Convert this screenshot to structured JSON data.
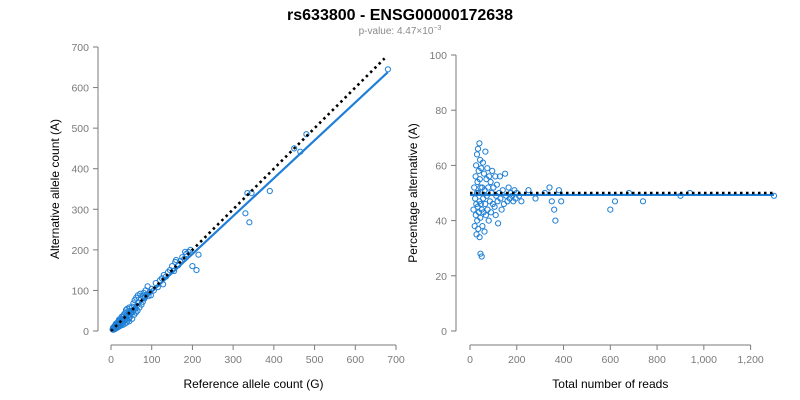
{
  "figure": {
    "title": "rs633800 - ENSG00000172638",
    "subtitle_prefix": "p-value: 4.47×10",
    "subtitle_exponent": "−3"
  },
  "colors": {
    "points": "#1f7fd6",
    "fit": "#1f7fd6",
    "reference": "#000000",
    "axis": "#7a7a7a"
  },
  "chart_data": [
    {
      "type": "scatter",
      "title": "",
      "xlabel": "Reference allele count (G)",
      "ylabel": "Alternative allele count (A)",
      "xlim": [
        0,
        700
      ],
      "ylim": [
        0,
        700
      ],
      "xticks": [
        0,
        100,
        200,
        300,
        400,
        500,
        600,
        700
      ],
      "xtick_labels": [
        "0",
        "100",
        "200",
        "300",
        "400",
        "500",
        "600",
        "700"
      ],
      "yticks": [
        0,
        100,
        200,
        300,
        400,
        500,
        600,
        700
      ],
      "ytick_labels": [
        "0",
        "100",
        "200",
        "300",
        "400",
        "500",
        "600",
        "700"
      ],
      "grid": false,
      "reference_line": {
        "style": "dotted",
        "points": [
          [
            0,
            0
          ],
          [
            672,
            672
          ]
        ]
      },
      "fit_line": {
        "style": "solid",
        "points": [
          [
            0,
            3
          ],
          [
            680,
            638
          ]
        ]
      },
      "points": [
        [
          4,
          4
        ],
        [
          5,
          8
        ],
        [
          6,
          3
        ],
        [
          7,
          10
        ],
        [
          8,
          6
        ],
        [
          9,
          12
        ],
        [
          10,
          5
        ],
        [
          10,
          14
        ],
        [
          11,
          9
        ],
        [
          12,
          18
        ],
        [
          12,
          7
        ],
        [
          13,
          15
        ],
        [
          14,
          11
        ],
        [
          15,
          20
        ],
        [
          15,
          8
        ],
        [
          16,
          13
        ],
        [
          17,
          22
        ],
        [
          18,
          10
        ],
        [
          18,
          16
        ],
        [
          19,
          25
        ],
        [
          20,
          14
        ],
        [
          20,
          28
        ],
        [
          21,
          18
        ],
        [
          22,
          12
        ],
        [
          23,
          21
        ],
        [
          24,
          30
        ],
        [
          25,
          16
        ],
        [
          25,
          24
        ],
        [
          26,
          35
        ],
        [
          27,
          19
        ],
        [
          28,
          27
        ],
        [
          29,
          15
        ],
        [
          30,
          38
        ],
        [
          30,
          22
        ],
        [
          31,
          30
        ],
        [
          32,
          41
        ],
        [
          33,
          25
        ],
        [
          34,
          18
        ],
        [
          35,
          33
        ],
        [
          35,
          45
        ],
        [
          36,
          28
        ],
        [
          37,
          52
        ],
        [
          38,
          21
        ],
        [
          38,
          36
        ],
        [
          39,
          30
        ],
        [
          40,
          55
        ],
        [
          40,
          42
        ],
        [
          41,
          26
        ],
        [
          42,
          38
        ],
        [
          43,
          48
        ],
        [
          44,
          32
        ],
        [
          45,
          58
        ],
        [
          45,
          24
        ],
        [
          46,
          40
        ],
        [
          47,
          35
        ],
        [
          48,
          50
        ],
        [
          50,
          44
        ],
        [
          52,
          60
        ],
        [
          52,
          30
        ],
        [
          54,
          47
        ],
        [
          55,
          68
        ],
        [
          56,
          52
        ],
        [
          57,
          40
        ],
        [
          58,
          76
        ],
        [
          60,
          55
        ],
        [
          61,
          45
        ],
        [
          62,
          82
        ],
        [
          63,
          62
        ],
        [
          65,
          50
        ],
        [
          66,
          88
        ],
        [
          68,
          70
        ],
        [
          70,
          58
        ],
        [
          72,
          92
        ],
        [
          74,
          78
        ],
        [
          75,
          65
        ],
        [
          77,
          86
        ],
        [
          78,
          72
        ],
        [
          80,
          94
        ],
        [
          82,
          80
        ],
        [
          84,
          84
        ],
        [
          85,
          100
        ],
        [
          88,
          90
        ],
        [
          90,
          110
        ],
        [
          92,
          86
        ],
        [
          95,
          96
        ],
        [
          98,
          88
        ],
        [
          100,
          104
        ],
        [
          105,
          100
        ],
        [
          110,
          118
        ],
        [
          115,
          108
        ],
        [
          120,
          125
        ],
        [
          125,
          130
        ],
        [
          128,
          115
        ],
        [
          130,
          138
        ],
        [
          135,
          134
        ],
        [
          140,
          145
        ],
        [
          145,
          150
        ],
        [
          150,
          160
        ],
        [
          155,
          148
        ],
        [
          158,
          170
        ],
        [
          160,
          175
        ],
        [
          165,
          162
        ],
        [
          170,
          172
        ],
        [
          175,
          182
        ],
        [
          180,
          178
        ],
        [
          182,
          195
        ],
        [
          185,
          190
        ],
        [
          190,
          195
        ],
        [
          195,
          200
        ],
        [
          200,
          160
        ],
        [
          210,
          150
        ],
        [
          215,
          188
        ],
        [
          330,
          290
        ],
        [
          335,
          340
        ],
        [
          340,
          268
        ],
        [
          345,
          340
        ],
        [
          390,
          345
        ],
        [
          450,
          450
        ],
        [
          465,
          442
        ],
        [
          480,
          485
        ],
        [
          680,
          645
        ]
      ]
    },
    {
      "type": "scatter",
      "title": "",
      "xlabel": "Total number of reads",
      "ylabel": "Percentage alternative (A)",
      "xlim": [
        0,
        1300
      ],
      "ylim": [
        0,
        100
      ],
      "xticks": [
        0,
        200,
        400,
        600,
        800,
        1000,
        1200
      ],
      "xtick_labels": [
        "0",
        "200",
        "400",
        "600",
        "800",
        "1,000",
        "1,200"
      ],
      "yticks": [
        0,
        20,
        40,
        60,
        80,
        100
      ],
      "ytick_labels": [
        "0",
        "20",
        "40",
        "60",
        "80",
        "100"
      ],
      "grid": false,
      "reference_line": {
        "style": "dotted",
        "points": [
          [
            0,
            50
          ],
          [
            1300,
            50
          ]
        ]
      },
      "fit_line": {
        "style": "solid",
        "points": [
          [
            0,
            49.3
          ],
          [
            1300,
            49.3
          ]
        ]
      },
      "points": [
        [
          15,
          44
        ],
        [
          18,
          52
        ],
        [
          20,
          38
        ],
        [
          22,
          48
        ],
        [
          24,
          56
        ],
        [
          25,
          42
        ],
        [
          26,
          60
        ],
        [
          27,
          46
        ],
        [
          28,
          35
        ],
        [
          30,
          50
        ],
        [
          30,
          64
        ],
        [
          31,
          40
        ],
        [
          32,
          54
        ],
        [
          33,
          45
        ],
        [
          34,
          66
        ],
        [
          35,
          37
        ],
        [
          36,
          50
        ],
        [
          37,
          58
        ],
        [
          38,
          43
        ],
        [
          40,
          68
        ],
        [
          40,
          47
        ],
        [
          41,
          34
        ],
        [
          42,
          55
        ],
        [
          43,
          62
        ],
        [
          44,
          41
        ],
        [
          45,
          28
        ],
        [
          45,
          52
        ],
        [
          46,
          46
        ],
        [
          48,
          59
        ],
        [
          50,
          44
        ],
        [
          50,
          27
        ],
        [
          52,
          52
        ],
        [
          53,
          38
        ],
        [
          55,
          61
        ],
        [
          56,
          48
        ],
        [
          58,
          43
        ],
        [
          60,
          57
        ],
        [
          62,
          36
        ],
        [
          63,
          51
        ],
        [
          65,
          46
        ],
        [
          66,
          65
        ],
        [
          68,
          42
        ],
        [
          70,
          55
        ],
        [
          72,
          49
        ],
        [
          74,
          59
        ],
        [
          75,
          44
        ],
        [
          78,
          52
        ],
        [
          80,
          40
        ],
        [
          82,
          56
        ],
        [
          85,
          47
        ],
        [
          88,
          54
        ],
        [
          90,
          43
        ],
        [
          92,
          50
        ],
        [
          95,
          58
        ],
        [
          98,
          46
        ],
        [
          100,
          52
        ],
        [
          105,
          45
        ],
        [
          108,
          56
        ],
        [
          110,
          42
        ],
        [
          112,
          49
        ],
        [
          115,
          53
        ],
        [
          118,
          47
        ],
        [
          120,
          39
        ],
        [
          125,
          50
        ],
        [
          128,
          56
        ],
        [
          130,
          48
        ],
        [
          135,
          44
        ],
        [
          140,
          51
        ],
        [
          145,
          46
        ],
        [
          150,
          57
        ],
        [
          155,
          49
        ],
        [
          160,
          47
        ],
        [
          165,
          52
        ],
        [
          170,
          48
        ],
        [
          175,
          50
        ],
        [
          180,
          49
        ],
        [
          185,
          47
        ],
        [
          190,
          51
        ],
        [
          195,
          48
        ],
        [
          200,
          50
        ],
        [
          210,
          49
        ],
        [
          220,
          47
        ],
        [
          250,
          51
        ],
        [
          280,
          48
        ],
        [
          320,
          50
        ],
        [
          340,
          52
        ],
        [
          350,
          47
        ],
        [
          360,
          44
        ],
        [
          365,
          40
        ],
        [
          380,
          51
        ],
        [
          390,
          47
        ],
        [
          600,
          44
        ],
        [
          620,
          47
        ],
        [
          680,
          50
        ],
        [
          740,
          47
        ],
        [
          900,
          49
        ],
        [
          940,
          50
        ],
        [
          1300,
          49
        ]
      ]
    }
  ]
}
